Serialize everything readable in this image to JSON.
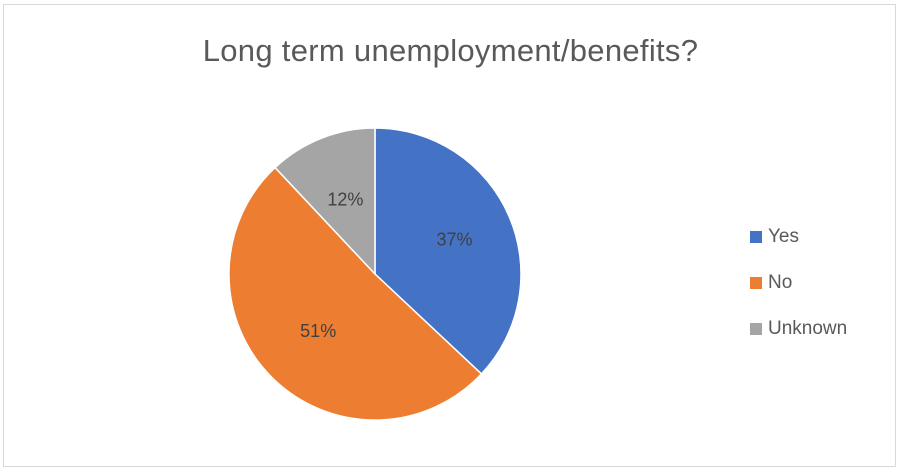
{
  "chart_data": {
    "type": "pie",
    "title": "Long term unemployment/benefits?",
    "categories": [
      "Yes",
      "No",
      "Unknown"
    ],
    "values": [
      37,
      51,
      12
    ],
    "data_labels": [
      "37%",
      "51%",
      "12%"
    ],
    "colors": [
      "#4472C4",
      "#ED7D31",
      "#A5A5A5"
    ],
    "legend_position": "right"
  }
}
